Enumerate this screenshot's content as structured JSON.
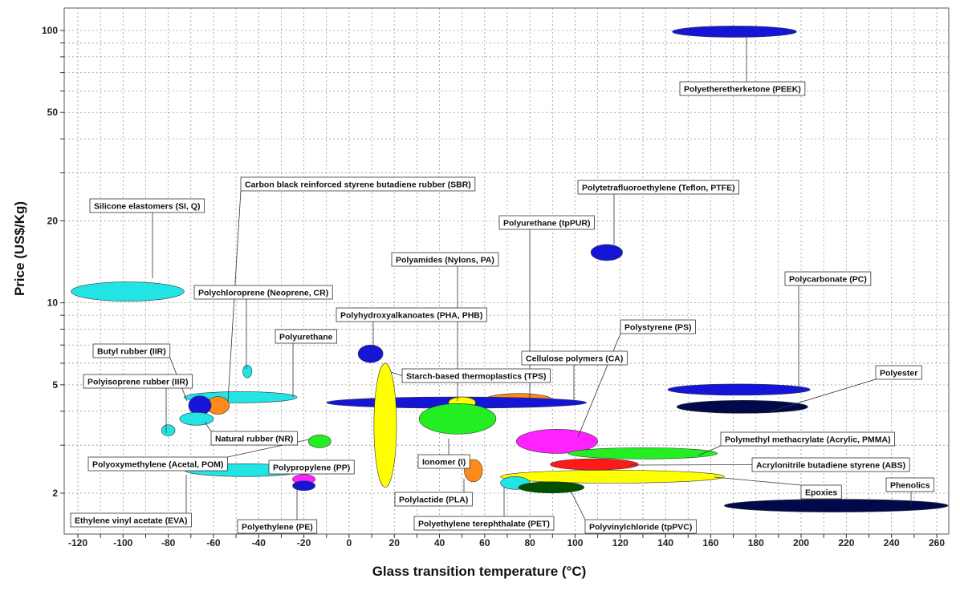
{
  "chart_data": {
    "type": "scatter",
    "title": "",
    "xlabel": "Glass transition temperature (°C)",
    "ylabel": "Price (US$/Kg)",
    "xlim": [
      -128,
      268
    ],
    "ylim": [
      1.6,
      105
    ],
    "y_scale": "log",
    "grid": true,
    "x_ticks": [
      -120,
      -100,
      -80,
      -60,
      -40,
      -20,
      0,
      20,
      40,
      60,
      80,
      100,
      120,
      140,
      160,
      180,
      200,
      220,
      240,
      260
    ],
    "y_ticks": [
      2,
      5,
      10,
      20,
      50,
      100
    ],
    "materials": [
      {
        "name": "Polyetheretherketone (PEEK)",
        "tg": [
          143,
          198
        ],
        "price": [
          99,
          99
        ],
        "color": "#1515d8"
      },
      {
        "name": "Silicone elastomers (SI, Q)",
        "tg": [
          -123,
          -73
        ],
        "price": [
          11.0,
          11.0
        ],
        "color": "#22e4e4"
      },
      {
        "name": "Carbon black reinforced styrene butadiene rubber (SBR)",
        "tg": [
          -73,
          -23
        ],
        "price": [
          4.5,
          4.5
        ],
        "color": "#22e4e4"
      },
      {
        "name": "Polytetrafluoroethylene (Teflon, PTFE)",
        "tg": [
          107,
          121
        ],
        "price": [
          15.3,
          15.3
        ],
        "color": "#1515d8"
      },
      {
        "name": "Polyurethane (tpPUR)",
        "tg": [
          60,
          90
        ],
        "price": [
          4.4,
          4.4
        ],
        "color": "#ff8a1a"
      },
      {
        "name": "Polyamides (Nylons, PA)",
        "tg": [
          -10,
          105
        ],
        "price": [
          4.3,
          4.3
        ],
        "color": "#1515d8"
      },
      {
        "name": "Polychloroprene (Neoprene, CR)",
        "tg": [
          -47,
          -43
        ],
        "price": [
          5.6,
          5.6
        ],
        "color": "#22e4e4"
      },
      {
        "name": "Polyurethane",
        "tg": [
          -63,
          -53
        ],
        "price": [
          4.2,
          4.2
        ],
        "color": "#ff8a1a"
      },
      {
        "name": "Polyhydroxyalkanoates (PHA, PHB)",
        "tg": [
          4,
          15
        ],
        "price": [
          6.5,
          6.5
        ],
        "color": "#1515d8"
      },
      {
        "name": "Butyl rubber (IIR)",
        "tg": [
          -71,
          -61
        ],
        "price": [
          4.2,
          4.2
        ],
        "color": "#1515d8"
      },
      {
        "name": "Polyisoprene rubber (IIR)",
        "tg": [
          -83,
          -77
        ],
        "price": [
          3.4,
          3.4
        ],
        "color": "#22e4e4"
      },
      {
        "name": "Natural rubber (NR)",
        "tg": [
          -75,
          -60
        ],
        "price": [
          3.75,
          3.75
        ],
        "color": "#22e4e4"
      },
      {
        "name": "Starch-based thermoplastics (TPS)",
        "tg": [
          11,
          21
        ],
        "price": [
          2.1,
          6.0
        ],
        "color": "#ffff00"
      },
      {
        "name": "Cellulose polymers (CA)",
        "tg": [
          44,
          56
        ],
        "price": [
          4.3,
          4.3
        ],
        "color": "#ffff00"
      },
      {
        "name": "Ionomer (I)",
        "tg": [
          31,
          65
        ],
        "price": [
          3.75,
          3.75
        ],
        "color": "#22ee22"
      },
      {
        "name": "Polystyrene (PS)",
        "tg": [
          74,
          110
        ],
        "price": [
          3.1,
          3.1
        ],
        "color": "#ff22ff"
      },
      {
        "name": "Polycarbonate (PC)",
        "tg": [
          141,
          204
        ],
        "price": [
          4.8,
          4.8
        ],
        "color": "#1515d8"
      },
      {
        "name": "Polyester",
        "tg": [
          145,
          203
        ],
        "price": [
          4.15,
          4.15
        ],
        "color": "#000a4a"
      },
      {
        "name": "Polymethyl methacrylate (Acrylic, PMMA)",
        "tg": [
          97,
          163
        ],
        "price": [
          2.8,
          2.8
        ],
        "color": "#22ee22"
      },
      {
        "name": "Acrylonitrile butadiene styrene (ABS)",
        "tg": [
          89,
          128
        ],
        "price": [
          2.55,
          2.55
        ],
        "color": "#ff1a1a"
      },
      {
        "name": "Epoxies",
        "tg": [
          67,
          166
        ],
        "price": [
          2.3,
          2.3
        ],
        "color": "#ffff00"
      },
      {
        "name": "Phenolics",
        "tg": [
          166,
          265
        ],
        "price": [
          1.8,
          1.8
        ],
        "color": "#000a4a"
      },
      {
        "name": "Polyoxymethylene (Acetal, POM)",
        "tg": [
          -18,
          -8
        ],
        "price": [
          3.1,
          3.1
        ],
        "color": "#22ee22"
      },
      {
        "name": "Polypropylene (PP)",
        "tg": [
          -25,
          -15
        ],
        "price": [
          2.25,
          2.25
        ],
        "color": "#ff22ff"
      },
      {
        "name": "Polyethylene (PE)",
        "tg": [
          -25,
          -15
        ],
        "price": [
          2.13,
          2.13
        ],
        "color": "#1515d8"
      },
      {
        "name": "Ethylene vinyl acetate (EVA)",
        "tg": [
          -73,
          -20
        ],
        "price": [
          2.43,
          2.43
        ],
        "color": "#22e4e4"
      },
      {
        "name": "Polylactide (PLA)",
        "tg": [
          51,
          59
        ],
        "price": [
          2.42,
          2.42
        ],
        "color": "#ff8a1a"
      },
      {
        "name": "Polyethylene terephthalate (PET)",
        "tg": [
          67,
          80
        ],
        "price": [
          2.18,
          2.18
        ],
        "color": "#22e4e4"
      },
      {
        "name": "Polyvinylchloride (tpPVC)",
        "tg": [
          75,
          104
        ],
        "price": [
          2.1,
          2.1
        ],
        "color": "#005000"
      }
    ]
  }
}
